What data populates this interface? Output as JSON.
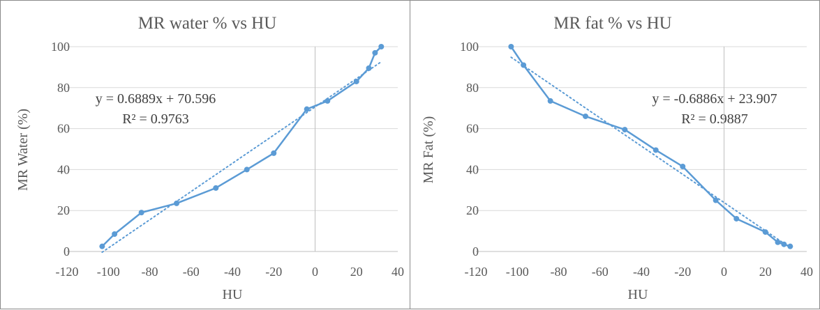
{
  "chart_data": [
    {
      "type": "line",
      "title": "MR water % vs HU",
      "xlabel": "HU",
      "ylabel": "MR Water (%)",
      "xlim": [
        -120,
        40
      ],
      "ylim": [
        0,
        100
      ],
      "xticks": [
        -120,
        -100,
        -80,
        -60,
        -40,
        -20,
        0,
        20,
        40
      ],
      "yticks": [
        0,
        20,
        40,
        60,
        80,
        100
      ],
      "grid": "horizontal",
      "series": [
        {
          "x": [
            -103,
            -97,
            -84,
            -67,
            -48,
            -33,
            -20,
            -4,
            6,
            20,
            26,
            29,
            32
          ],
          "y": [
            2.5,
            8.5,
            19,
            23.5,
            31,
            40,
            48,
            69.5,
            73.5,
            83,
            89.5,
            97,
            100
          ]
        }
      ],
      "trendline": {
        "slope": 0.6889,
        "intercept": 70.596,
        "x_range": [
          -103,
          32
        ]
      },
      "annotation": {
        "equation": "y = 0.6889x + 70.596",
        "r_squared": "R² = 0.9763"
      },
      "color": "#5b9bd5"
    },
    {
      "type": "line",
      "title": "MR fat % vs HU",
      "xlabel": "HU",
      "ylabel": "MR Fat (%)",
      "xlim": [
        -120,
        40
      ],
      "ylim": [
        0,
        100
      ],
      "xticks": [
        -120,
        -100,
        -80,
        -60,
        -40,
        -20,
        0,
        20,
        40
      ],
      "yticks": [
        0,
        20,
        40,
        60,
        80,
        100
      ],
      "grid": "horizontal",
      "series": [
        {
          "x": [
            -103,
            -97,
            -84,
            -67,
            -48,
            -33,
            -20,
            -4,
            6,
            20,
            26,
            29,
            32
          ],
          "y": [
            100,
            91,
            73.5,
            66,
            59.5,
            49.5,
            41.5,
            25,
            16,
            9.5,
            4.5,
            3.5,
            2.5
          ]
        }
      ],
      "trendline": {
        "slope": -0.6886,
        "intercept": 23.907,
        "x_range": [
          -103,
          32
        ]
      },
      "annotation": {
        "equation": "y = -0.6886x + 23.907",
        "r_squared": "R² = 0.9887"
      },
      "color": "#5b9bd5"
    }
  ]
}
